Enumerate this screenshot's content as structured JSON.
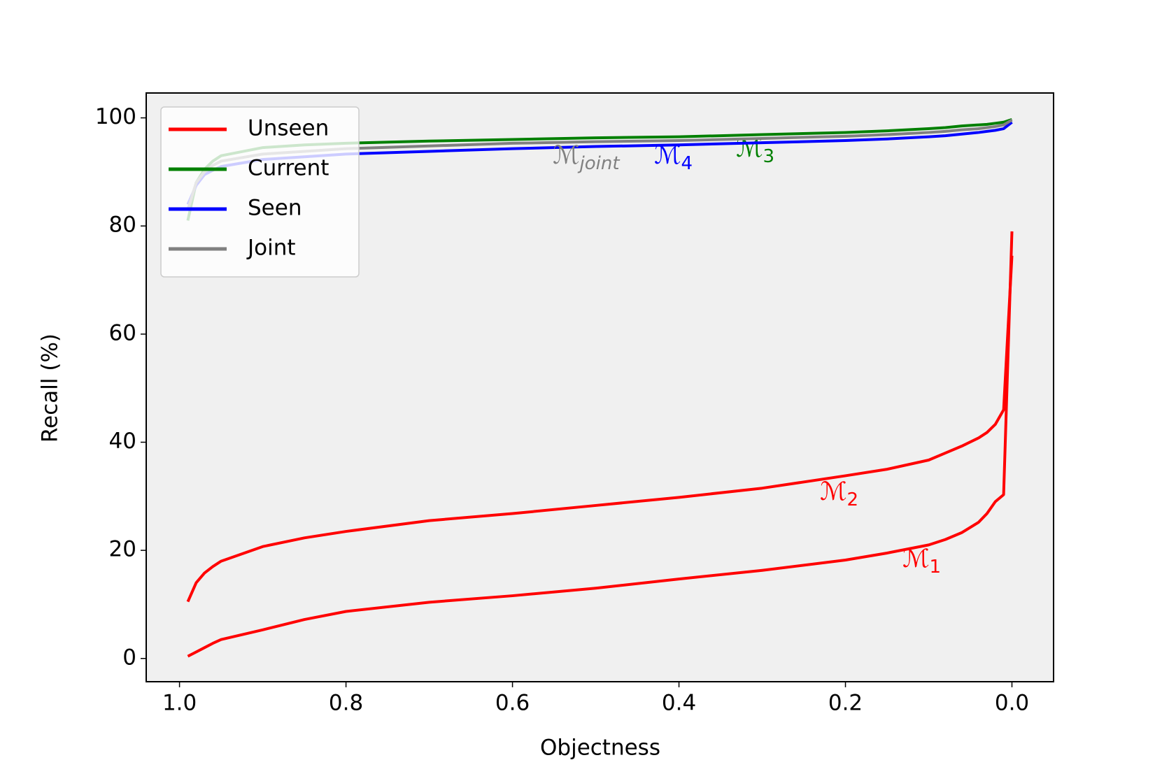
{
  "chart_data": {
    "type": "line",
    "xlabel": "Objectness",
    "ylabel": "Recall (%)",
    "x": [
      0.99,
      0.98,
      0.97,
      0.96,
      0.95,
      0.9,
      0.85,
      0.8,
      0.7,
      0.6,
      0.5,
      0.4,
      0.3,
      0.2,
      0.15,
      0.1,
      0.08,
      0.06,
      0.04,
      0.03,
      0.02,
      0.01,
      0.0
    ],
    "series": [
      {
        "name": "Unseen",
        "color": "#ff0000",
        "label": {
          "text": "ℳ",
          "sub": "1"
        },
        "values": [
          0.4,
          1.2,
          2,
          2.8,
          3.5,
          5.3,
          7.2,
          8.7,
          10.4,
          11.6,
          13,
          14.7,
          16.3,
          18.2,
          19.5,
          21,
          22,
          23.3,
          25.2,
          26.8,
          29,
          30.3,
          79
        ]
      },
      {
        "name": "Unseen",
        "color": "#ff0000",
        "label": {
          "text": "ℳ",
          "sub": "2"
        },
        "values": [
          10.5,
          14,
          15.8,
          17,
          18,
          20.7,
          22.3,
          23.5,
          25.5,
          26.8,
          28.3,
          29.8,
          31.5,
          33.8,
          35,
          36.7,
          38,
          39.3,
          40.8,
          41.8,
          43.3,
          46,
          74.5
        ]
      },
      {
        "name": "Current",
        "color": "#008000",
        "label": {
          "text": "ℳ",
          "sub": "3"
        },
        "values": [
          81,
          88,
          90.5,
          92,
          93,
          94.5,
          95,
          95.3,
          95.7,
          96,
          96.3,
          96.5,
          96.9,
          97.3,
          97.6,
          98,
          98.2,
          98.5,
          98.7,
          98.8,
          99,
          99.2,
          99.7
        ]
      },
      {
        "name": "Seen",
        "color": "#0000ff",
        "label": {
          "text": "ℳ",
          "sub": "4"
        },
        "values": [
          84,
          87.5,
          89.5,
          90.3,
          91,
          92.3,
          92.8,
          93.3,
          93.8,
          94.3,
          94.7,
          95,
          95.4,
          95.8,
          96.1,
          96.5,
          96.7,
          97,
          97.3,
          97.5,
          97.7,
          98,
          99.2
        ]
      },
      {
        "name": "Joint",
        "color": "#808080",
        "label": {
          "text": "ℳ",
          "sub": "joint"
        },
        "values": [
          83,
          88,
          90,
          91.2,
          92,
          93.3,
          93.8,
          94.3,
          94.8,
          95.3,
          95.6,
          95.8,
          96.2,
          96.6,
          96.9,
          97.3,
          97.5,
          97.8,
          98,
          98.2,
          98.4,
          98.7,
          99.6
        ]
      }
    ],
    "xlim": [
      1.04,
      -0.05
    ],
    "ylim": [
      -4.3,
      104.6
    ],
    "xticks": [
      {
        "value": 1,
        "label": "1.0"
      },
      0.8,
      0.6,
      0.4,
      0.2,
      {
        "value": 0,
        "label": "0.0"
      }
    ],
    "yticks": [
      0,
      20,
      40,
      60,
      80,
      100
    ],
    "grid": false,
    "legend": "upper left"
  }
}
